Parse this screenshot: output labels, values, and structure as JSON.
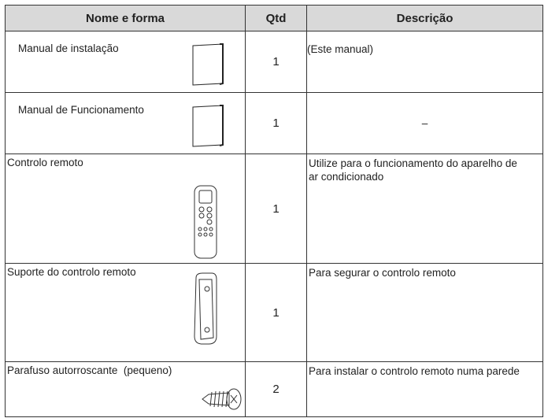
{
  "table": {
    "header": [
      "Nome e forma",
      "Qtd",
      "Descrição"
    ],
    "rows": [
      [
        "Manual de instalação",
        1,
        "(Este manual)"
      ],
      [
        "Manual de Funcionamento",
        1,
        "–"
      ],
      [
        "Controlo remoto",
        1,
        "Utilize para o funcionamento do aparelho de ar condicionado"
      ],
      [
        "Suporte do controlo remoto",
        1,
        "Para segurar o controlo remoto"
      ],
      [
        "Parafuso autorroscante  (pequeno)",
        2,
        "Para instalar o controlo remoto numa parede"
      ]
    ]
  }
}
